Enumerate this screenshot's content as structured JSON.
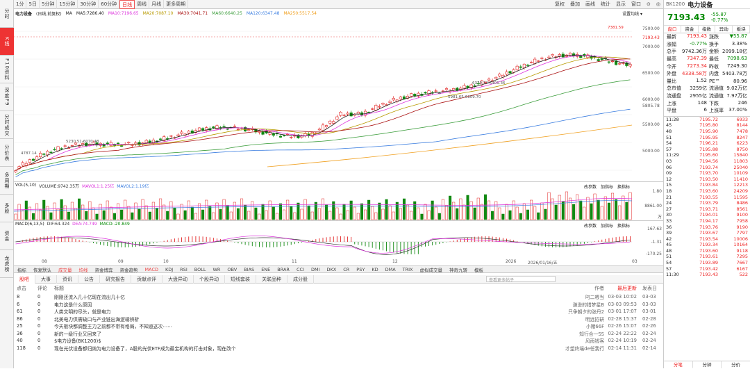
{
  "left_nav": [
    "分时",
    "K线",
    "F10资料",
    "深度F9",
    "分时成交",
    "分价表",
    "多周期",
    "多股",
    "资金",
    "龙虎榜"
  ],
  "periods": [
    "1分",
    "5日",
    "5分钟",
    "15分钟",
    "30分钟",
    "60分钟",
    "日线",
    "周线",
    "月线",
    "更多周期"
  ],
  "active_period": "日线",
  "right_tools": [
    "复权",
    "叠加",
    "画线",
    "统计",
    "显示",
    "窗口",
    "⊙",
    "◎"
  ],
  "header": {
    "name": "电力设备",
    "mode": "(日线,前复权)",
    "ma_prefix": "MA",
    "ma5": "MA5:7286.40",
    "ma10": "MA10:7196.65",
    "ma20": "MA20:7087.10",
    "ma30": "MA30:7041.71",
    "ma60": "MA60:6640.25",
    "ma120": "MA120:6347.48",
    "ma250": "MA250:5517.54",
    "settings": "设置均线 ▾"
  },
  "price_axis": [
    "7500.00",
    "7000.00",
    "6500.00",
    "6000.00",
    "5805.78",
    "5500.00",
    "5000.00"
  ],
  "price_tag": "7193.43",
  "annotations": {
    "high": "7381.59",
    "m1": "6370.12-6301.36",
    "m2": "5981.65-6109.70",
    "m3": "5230.51-6070.48",
    "low": "4787.14"
  },
  "vol": {
    "title": "VOL(5,10)",
    "volume": "VOLUME:9742.35万",
    "mavol1": "MAVOL1:1.25亿",
    "mavol2": "MAVOL2:1.19亿",
    "tools": [
      "改参数",
      "加指标",
      "换指标"
    ],
    "axis": [
      "1.80",
      "8861.00",
      "万"
    ]
  },
  "macd": {
    "title": "MACD(6,13,5)",
    "dif": "DIF:64.324",
    "dea": "DEA:74.749",
    "macd": "MACD:-20.849",
    "tools": [
      "改参数",
      "加指标",
      "换指标"
    ],
    "axis": [
      "167.63",
      "-1.31",
      "-170.25"
    ]
  },
  "x_labels": [
    "08",
    "09",
    "10",
    "11",
    "12",
    "2026",
    "2026/01/16/五",
    "03"
  ],
  "indicator_tabs": [
    "指标",
    "恢复默认",
    "成交量",
    "均线",
    "资金博弈",
    "资金趋势",
    "MACD",
    "KDJ",
    "RSI",
    "BOLL",
    "WR",
    "OBV",
    "BIAS",
    "ENE",
    "BRAR",
    "CCI",
    "DMI",
    "DKX",
    "CR",
    "PSY",
    "KD",
    "DMA",
    "TRIX",
    "虚拟成交量",
    "神奇九转",
    "模板"
  ],
  "news_tabs": [
    "股吧",
    "大事",
    "资讯",
    "公告",
    "研究报告",
    "贡献点评",
    "大盘异动",
    "个股异动",
    "短线套装",
    "关联品种",
    "成分股"
  ],
  "news_search": "查看更多帖子",
  "news_cols": {
    "c1": "点击",
    "c2": "评论",
    "c3": "标题",
    "c4": "作者",
    "c5": "最后更新",
    "c6": "发表日"
  },
  "news": [
    {
      "clicks": "8",
      "comments": "0",
      "title": "刚刚还流入几十亿现在流出几十亿",
      "author": "叼二喂当",
      "updated": "03-03 10:02",
      "date": "03-03"
    },
    {
      "clicks": "6",
      "comments": "0",
      "title": "电力这是什么原因",
      "author": "谦逊的猎梦星B",
      "updated": "03-03 09:53",
      "date": "03-03"
    },
    {
      "clicks": "61",
      "comments": "0",
      "title": "人类文明的尽头，就是电力",
      "author": "只争朝夕的张丹2",
      "updated": "03-01 17:07",
      "date": "03-01"
    },
    {
      "clicks": "86",
      "comments": "0",
      "title": "北美电力供需缺口与产业链出海逻辑辨析",
      "author": "明远招研",
      "updated": "02-28 15:37",
      "date": "02-28"
    },
    {
      "clicks": "25",
      "comments": "0",
      "title": "今天板块都调整王力之前都不带有格局，不知道这次⋯⋯",
      "author": "小赌66F",
      "updated": "02-26 15:07",
      "date": "02-26"
    },
    {
      "clicks": "36",
      "comments": "0",
      "title": "新的一级行业又回来了",
      "author": "知行合一SS",
      "updated": "02-24 22:22",
      "date": "02-24"
    },
    {
      "clicks": "40",
      "comments": "0",
      "title": "$电力设备(BK1200)$",
      "author": "风雨钱客",
      "updated": "02-24 10:19",
      "date": "02-24"
    },
    {
      "clicks": "118",
      "comments": "0",
      "title": "现在光伏设备都归纳为电力设备了，A股的光伏ETF成为最宝机构的打击对象，现在改个",
      "author": "才望终端de任我行",
      "updated": "02-14 11:31",
      "date": "02-14"
    }
  ],
  "rp": {
    "code": "BK1200",
    "name": "电力设备",
    "price": "7193.43",
    "chg": "-55.87",
    "pct": "-0.77%",
    "tabs": [
      "盘口",
      "资金",
      "指数",
      "异动",
      "板块"
    ],
    "rows": [
      [
        "最新",
        "7193.43",
        "涨跌",
        "▼55.87"
      ],
      [
        "涨幅",
        "-0.77%",
        "换手",
        "3.38%"
      ],
      [
        "总手",
        "9742.36万",
        "金额",
        "2099.18亿"
      ],
      [
        "最高",
        "7347.39",
        "最低",
        "7098.63"
      ],
      [
        "今开",
        "7273.34",
        "昨收",
        "7249.30"
      ],
      [
        "外盘",
        "4338.58万",
        "内盘",
        "5403.78万"
      ],
      [
        "量比",
        "1.52",
        "PE™",
        "80.96"
      ],
      [
        "总市值",
        "3259亿",
        "流通值",
        "9.02万亿"
      ],
      [
        "流通盘",
        "2955亿",
        "流通值",
        "7.97万亿"
      ],
      [
        "上涨",
        "148",
        "下跌",
        "246"
      ],
      [
        "平盘",
        "6",
        "上涨率",
        "37.00%"
      ]
    ],
    "ticks": [
      [
        "11:28",
        "7195.72",
        "6933"
      ],
      [
        "45",
        "7195.80",
        "8144"
      ],
      [
        "48",
        "7195.90",
        "7478"
      ],
      [
        "51",
        "7195.95",
        "8247"
      ],
      [
        "54",
        "7196.21",
        "6223"
      ],
      [
        "57",
        "7195.88",
        "8750"
      ],
      [
        "11:29",
        "7195.60",
        "15840"
      ],
      [
        "03",
        "7194.56",
        "11803"
      ],
      [
        "06",
        "7193.74",
        "25040"
      ],
      [
        "09",
        "7193.70",
        "10109"
      ],
      [
        "12",
        "7193.50",
        "11410"
      ],
      [
        "15",
        "7193.84",
        "12213"
      ],
      [
        "18",
        "7193.60",
        "24209"
      ],
      [
        "21",
        "7193.55",
        "11595"
      ],
      [
        "24",
        "7193.79",
        "8486"
      ],
      [
        "27",
        "7193.71",
        "8561"
      ],
      [
        "30",
        "7194.01",
        "9100"
      ],
      [
        "33",
        "7194.17",
        "7958"
      ],
      [
        "36",
        "7193.76",
        "9190"
      ],
      [
        "39",
        "7193.67",
        "7797"
      ],
      [
        "42",
        "7193.54",
        "10006"
      ],
      [
        "45",
        "7193.34",
        "10164"
      ],
      [
        "48",
        "7193.60",
        "9118"
      ],
      [
        "51",
        "7193.61",
        "7295"
      ],
      [
        "54",
        "7193.89",
        "7667"
      ],
      [
        "57",
        "7193.42",
        "6167"
      ],
      [
        "11:30",
        "7193.43",
        "522"
      ]
    ],
    "bottom_tabs": [
      "分笔",
      "分钟",
      "分价"
    ]
  },
  "colors": {
    "up": "#e22222",
    "down": "#118811",
    "ma5": "#222222",
    "ma10": "#dd33dd",
    "ma20": "#b89a00",
    "ma30": "#aa1111",
    "ma60": "#3b9d3b",
    "ma120": "#3a7de0",
    "ma250": "#f0a020"
  }
}
